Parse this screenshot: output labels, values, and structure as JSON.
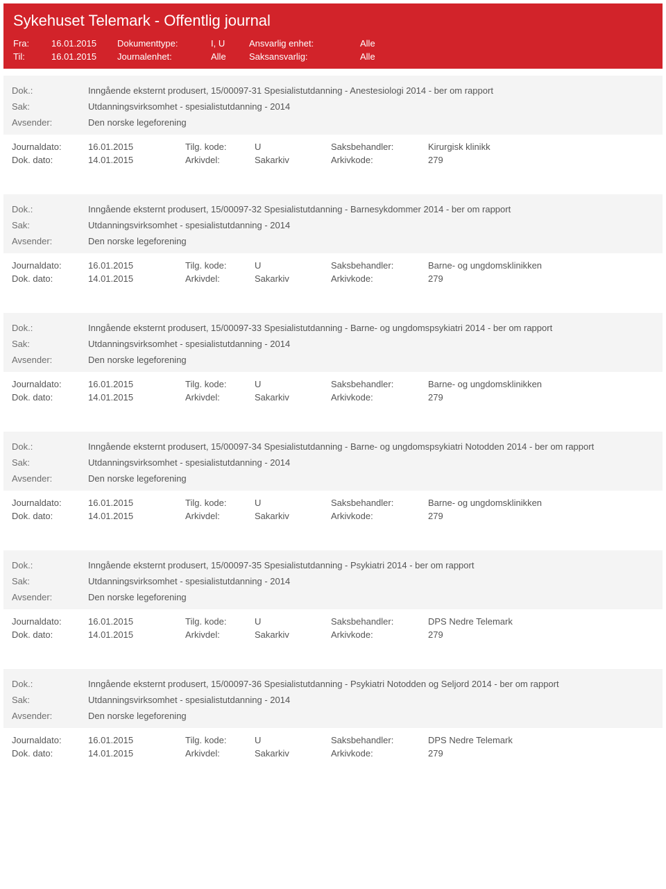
{
  "banner": {
    "title": "Sykehuset Telemark - Offentlig journal",
    "fraLabel": "Fra:",
    "tilLabel": "Til:",
    "fraDate": "16.01.2015",
    "tilDate": "16.01.2015",
    "dokTypeLabel": "Dokumenttype:",
    "dokTypeVal": "I, U",
    "journEnhetLabel": "Journalenhet:",
    "journEnhetVal": "Alle",
    "ansvEnhetLabel": "Ansvarlig enhet:",
    "ansvEnhetVal": "Alle",
    "saksAnsvLabel": "Saksansvarlig:",
    "saksAnsvVal": "Alle"
  },
  "labels": {
    "dok": "Dok.:",
    "sak": "Sak:",
    "avsender": "Avsender:",
    "journaldato": "Journaldato:",
    "dokdato": "Dok. dato:",
    "tilgkode": "Tilg. kode:",
    "arkivdel": "Arkivdel:",
    "saksbehandler": "Saksbehandler:",
    "arkivkode": "Arkivkode:"
  },
  "entries": [
    {
      "dok": "Inngående eksternt produsert, 15/00097-31 Spesialistutdanning - Anestesiologi 2014 - ber om rapport",
      "sak": "Utdanningsvirksomhet - spesialistutdanning - 2014",
      "avsender": "Den norske legeforening",
      "journaldato": "16.01.2015",
      "tilgkode": "U",
      "saksbehandler": "Kirurgisk klinikk",
      "dokdato": "14.01.2015",
      "arkivdel": "Sakarkiv",
      "arkivkode": "279"
    },
    {
      "dok": "Inngående eksternt produsert, 15/00097-32 Spesialistutdanning - Barnesykdommer 2014 - ber om rapport",
      "sak": "Utdanningsvirksomhet - spesialistutdanning - 2014",
      "avsender": "Den norske legeforening",
      "journaldato": "16.01.2015",
      "tilgkode": "U",
      "saksbehandler": "Barne- og ungdomsklinikken",
      "dokdato": "14.01.2015",
      "arkivdel": "Sakarkiv",
      "arkivkode": "279"
    },
    {
      "dok": "Inngående eksternt produsert, 15/00097-33 Spesialistutdanning - Barne- og ungdomspsykiatri 2014 - ber om rapport",
      "sak": "Utdanningsvirksomhet - spesialistutdanning - 2014",
      "avsender": "Den norske legeforening",
      "journaldato": "16.01.2015",
      "tilgkode": "U",
      "saksbehandler": "Barne- og ungdomsklinikken",
      "dokdato": "14.01.2015",
      "arkivdel": "Sakarkiv",
      "arkivkode": "279"
    },
    {
      "dok": "Inngående eksternt produsert, 15/00097-34 Spesialistutdanning - Barne- og ungdomspsykiatri Notodden 2014 - ber om rapport",
      "sak": "Utdanningsvirksomhet - spesialistutdanning - 2014",
      "avsender": "Den norske legeforening",
      "journaldato": "16.01.2015",
      "tilgkode": "U",
      "saksbehandler": "Barne- og ungdomsklinikken",
      "dokdato": "14.01.2015",
      "arkivdel": "Sakarkiv",
      "arkivkode": "279"
    },
    {
      "dok": "Inngående eksternt produsert, 15/00097-35 Spesialistutdanning - Psykiatri 2014 - ber om rapport",
      "sak": "Utdanningsvirksomhet - spesialistutdanning - 2014",
      "avsender": "Den norske legeforening",
      "journaldato": "16.01.2015",
      "tilgkode": "U",
      "saksbehandler": "DPS Nedre Telemark",
      "dokdato": "14.01.2015",
      "arkivdel": "Sakarkiv",
      "arkivkode": "279"
    },
    {
      "dok": "Inngående eksternt produsert, 15/00097-36 Spesialistutdanning - Psykiatri Notodden og Seljord 2014 - ber om rapport",
      "sak": "Utdanningsvirksomhet - spesialistutdanning - 2014",
      "avsender": "Den norske legeforening",
      "journaldato": "16.01.2015",
      "tilgkode": "U",
      "saksbehandler": "DPS Nedre Telemark",
      "dokdato": "14.01.2015",
      "arkivdel": "Sakarkiv",
      "arkivkode": "279"
    }
  ]
}
